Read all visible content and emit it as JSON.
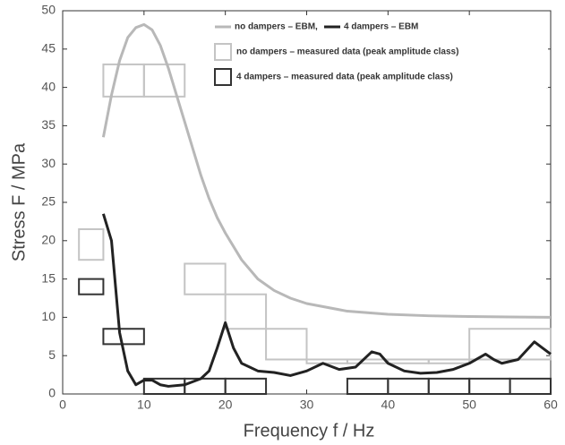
{
  "chart_data": {
    "type": "line",
    "xlabel": "Frequency  f / Hz",
    "ylabel": "Stress  F / MPa",
    "xlim": [
      0,
      60
    ],
    "xticks": [
      0,
      10,
      20,
      30,
      40,
      50,
      60
    ],
    "ylim": [
      0,
      50
    ],
    "yticks": [
      0,
      5,
      10,
      15,
      20,
      25,
      30,
      35,
      40,
      45,
      50
    ],
    "grid": false,
    "legend": "upper right",
    "series": [
      {
        "name": "no dampers – EBM,",
        "color": "#b8b8b8",
        "x": [
          5,
          6,
          7,
          8,
          9,
          10,
          11,
          12,
          13,
          14,
          15,
          16,
          17,
          18,
          19,
          20,
          22,
          24,
          26,
          28,
          30,
          35,
          40,
          45,
          50,
          55,
          60
        ],
        "values": [
          33.5,
          39,
          43.5,
          46.5,
          47.8,
          48.2,
          47.5,
          45.5,
          42.5,
          39,
          35.5,
          32,
          28.5,
          25.5,
          23,
          21,
          17.5,
          15,
          13.5,
          12.5,
          11.8,
          10.8,
          10.4,
          10.2,
          10.1,
          10.05,
          10
        ]
      },
      {
        "name": "4 dampers – EBM",
        "color": "#222222",
        "x": [
          5,
          6,
          6.5,
          7,
          8,
          9,
          10,
          11,
          12,
          13,
          15,
          17,
          18,
          19,
          20,
          21,
          22,
          24,
          26,
          28,
          30,
          32,
          34,
          36,
          38,
          39,
          40,
          42,
          44,
          46,
          48,
          50,
          52,
          53,
          54,
          56,
          58,
          59,
          60
        ],
        "values": [
          23.5,
          20,
          14,
          8,
          3,
          1.2,
          1.8,
          1.8,
          1.2,
          1,
          1.2,
          2,
          3,
          6,
          9.3,
          6,
          4,
          3,
          2.8,
          2.4,
          3,
          4,
          3.2,
          3.5,
          5.5,
          5.2,
          4,
          3,
          2.7,
          2.8,
          3.2,
          4,
          5.2,
          4.5,
          4,
          4.5,
          6.8,
          6,
          5.2
        ]
      }
    ],
    "box_series": [
      {
        "name": "no dampers – measured data (peak amplitude class)",
        "color": "#c4c4c4",
        "boxes": [
          {
            "x": [
              5,
              10
            ],
            "y": [
              38.8,
              43
            ]
          },
          {
            "x": [
              10,
              15
            ],
            "y": [
              38.8,
              43
            ]
          },
          {
            "x": [
              2,
              5
            ],
            "y": [
              17.5,
              21.5
            ]
          },
          {
            "x": [
              15,
              20
            ],
            "y": [
              13,
              17
            ]
          },
          {
            "x": [
              20,
              25
            ],
            "y": [
              8.5,
              13
            ]
          },
          {
            "x": [
              25,
              30
            ],
            "y": [
              4.5,
              8.5
            ]
          },
          {
            "x": [
              30,
              35
            ],
            "y": [
              4,
              4.5
            ]
          },
          {
            "x": [
              35,
              40
            ],
            "y": [
              4,
              4.5
            ]
          },
          {
            "x": [
              40,
              45
            ],
            "y": [
              4,
              4.5
            ]
          },
          {
            "x": [
              45,
              50
            ],
            "y": [
              4,
              4.5
            ]
          },
          {
            "x": [
              50,
              60
            ],
            "y": [
              4.5,
              8.5
            ]
          }
        ]
      },
      {
        "name": "4 dampers – measured data (peak amplitude class)",
        "color": "#333333",
        "boxes": [
          {
            "x": [
              2,
              5
            ],
            "y": [
              13,
              15
            ]
          },
          {
            "x": [
              5,
              10
            ],
            "y": [
              6.5,
              8.5
            ]
          },
          {
            "x": [
              10,
              15
            ],
            "y": [
              0,
              2
            ]
          },
          {
            "x": [
              15,
              20
            ],
            "y": [
              0,
              2
            ]
          },
          {
            "x": [
              20,
              25
            ],
            "y": [
              0,
              2
            ]
          },
          {
            "x": [
              35,
              40
            ],
            "y": [
              0,
              2
            ]
          },
          {
            "x": [
              40,
              45
            ],
            "y": [
              0,
              2
            ]
          },
          {
            "x": [
              45,
              50
            ],
            "y": [
              0,
              2
            ]
          },
          {
            "x": [
              50,
              55
            ],
            "y": [
              0,
              2
            ]
          },
          {
            "x": [
              55,
              60
            ],
            "y": [
              0,
              2
            ]
          }
        ]
      }
    ]
  }
}
